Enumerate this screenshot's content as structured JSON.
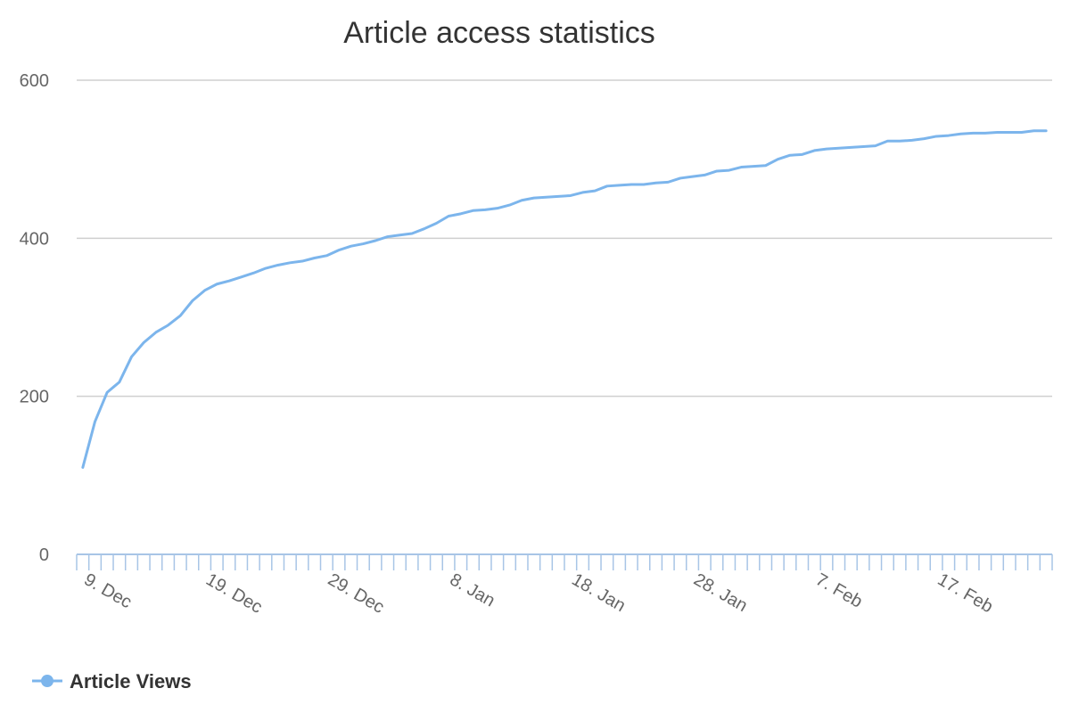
{
  "chart_data": {
    "type": "line",
    "title": "Article access statistics",
    "xlabel": "",
    "ylabel": "",
    "ylim": [
      0,
      600
    ],
    "yticks": [
      0,
      200,
      400,
      600
    ],
    "x_start": "2023-12-09",
    "xtick_labels": [
      "9. Dec",
      "19. Dec",
      "29. Dec",
      "8. Jan",
      "18. Jan",
      "28. Jan",
      "7. Feb",
      "17. Feb"
    ],
    "grid": true,
    "legend": "bottom-left",
    "series": [
      {
        "name": "Article Views",
        "color": "#7cb5ec",
        "values": [
          110,
          168,
          205,
          218,
          250,
          268,
          281,
          290,
          302,
          321,
          334,
          342,
          346,
          351,
          356,
          362,
          366,
          369,
          371,
          375,
          378,
          385,
          390,
          393,
          397,
          402,
          404,
          406,
          412,
          419,
          428,
          431,
          435,
          436,
          438,
          442,
          448,
          451,
          452,
          453,
          454,
          458,
          460,
          466,
          467,
          468,
          468,
          470,
          471,
          476,
          478,
          480,
          485,
          486,
          490,
          491,
          492,
          500,
          505,
          506,
          511,
          513,
          514,
          515,
          516,
          517,
          523,
          523,
          524,
          526,
          529,
          530,
          532,
          533,
          533,
          534,
          534,
          534,
          536,
          536
        ]
      }
    ]
  }
}
